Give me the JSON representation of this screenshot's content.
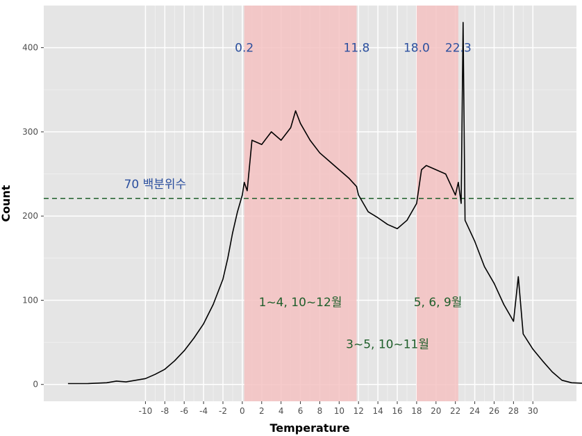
{
  "chart_data": {
    "type": "line",
    "title": "",
    "xlabel": "Temperature",
    "ylabel": "Count",
    "xlim": [
      -20.5,
      34.5
    ],
    "ylim": [
      -20,
      450
    ],
    "grid": true,
    "x_ticks": [
      -10,
      -8,
      -6,
      -4,
      -2,
      0,
      2,
      4,
      6,
      8,
      10,
      12,
      14,
      16,
      18,
      20,
      22,
      24,
      26,
      28,
      30
    ],
    "x_tick_labels": [
      "-10",
      "-8",
      "-6",
      "-4",
      "-2",
      "0",
      "2",
      "4",
      "6",
      "8",
      "10",
      "12",
      "14",
      "16",
      "18",
      "20",
      "22",
      "24",
      "26",
      "28",
      "30"
    ],
    "y_ticks": [
      0,
      100,
      200,
      300,
      400
    ],
    "y_tick_labels": [
      "0",
      "100",
      "200",
      "300",
      "400"
    ],
    "series": [
      {
        "values": [
          [
            -18,
            1
          ],
          [
            -16,
            1
          ],
          [
            -14,
            2
          ],
          [
            -13,
            4
          ],
          [
            -12,
            3
          ],
          [
            -11,
            5
          ],
          [
            -10,
            7
          ],
          [
            -9,
            12
          ],
          [
            -8,
            18
          ],
          [
            -7,
            28
          ],
          [
            -6,
            40
          ],
          [
            -5,
            55
          ],
          [
            -4,
            72
          ],
          [
            -3,
            95
          ],
          [
            -2,
            125
          ],
          [
            -1.5,
            150
          ],
          [
            -1,
            180
          ],
          [
            -0.5,
            205
          ],
          [
            0,
            225
          ],
          [
            0.2,
            240
          ],
          [
            0.5,
            230
          ],
          [
            1,
            290
          ],
          [
            2,
            285
          ],
          [
            3,
            300
          ],
          [
            4,
            290
          ],
          [
            5,
            305
          ],
          [
            5.5,
            325
          ],
          [
            6,
            310
          ],
          [
            7,
            290
          ],
          [
            8,
            275
          ],
          [
            9,
            265
          ],
          [
            10,
            255
          ],
          [
            11,
            245
          ],
          [
            11.8,
            235
          ],
          [
            12,
            225
          ],
          [
            13,
            205
          ],
          [
            14,
            198
          ],
          [
            15,
            190
          ],
          [
            16,
            185
          ],
          [
            17,
            195
          ],
          [
            18,
            215
          ],
          [
            18.5,
            255
          ],
          [
            19,
            260
          ],
          [
            20,
            255
          ],
          [
            21,
            250
          ],
          [
            22,
            225
          ],
          [
            22.3,
            240
          ],
          [
            22.6,
            215
          ],
          [
            22.8,
            430
          ],
          [
            23,
            195
          ],
          [
            24,
            170
          ],
          [
            25,
            140
          ],
          [
            26,
            120
          ],
          [
            27,
            95
          ],
          [
            28,
            75
          ],
          [
            28.5,
            128
          ],
          [
            29,
            60
          ],
          [
            30,
            42
          ],
          [
            31,
            28
          ],
          [
            32,
            15
          ],
          [
            33,
            5
          ],
          [
            34,
            2
          ],
          [
            36,
            1
          ]
        ]
      }
    ],
    "shaded_regions": [
      {
        "x_start": 0.2,
        "x_end": 11.8,
        "color": "#f4c2c2"
      },
      {
        "x_start": 18.0,
        "x_end": 22.3,
        "color": "#f4c2c2"
      }
    ],
    "reference_line": {
      "y": 221,
      "style": "dashed",
      "color": "#1e5e2a"
    },
    "annotations": [
      {
        "text": "0.2",
        "x": 0.2,
        "y": 400,
        "color": "#2b4f9e"
      },
      {
        "text": "11.8",
        "x": 11.8,
        "y": 400,
        "color": "#2b4f9e"
      },
      {
        "text": "18.0",
        "x": 18.0,
        "y": 400,
        "color": "#2b4f9e"
      },
      {
        "text": "22.3",
        "x": 22.3,
        "y": 400,
        "color": "#2b4f9e"
      },
      {
        "text": "70 백분위수",
        "x": -9,
        "y": 238,
        "color": "#2b4f9e"
      },
      {
        "text": "1~4, 10~12월",
        "x": 6,
        "y": 98,
        "color": "#1e5e2a"
      },
      {
        "text": "5, 6, 9월",
        "x": 20.2,
        "y": 98,
        "color": "#1e5e2a"
      },
      {
        "text": "3~5, 10~11월",
        "x": 15,
        "y": 48,
        "color": "#1e5e2a"
      }
    ]
  }
}
